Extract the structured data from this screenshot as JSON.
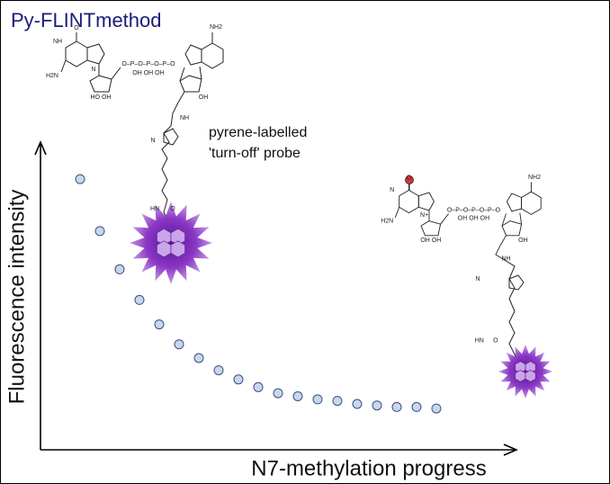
{
  "chart_data": {
    "type": "scatter",
    "title": "Py-FLINTmethod",
    "xlabel": "N7-methylation progress",
    "ylabel": "Fluorescence intensity",
    "annotation": [
      "pyrene-labelled",
      "'turn-off' probe"
    ],
    "x": [
      1,
      2,
      3,
      4,
      5,
      6,
      7,
      8,
      9,
      10,
      11,
      12,
      13,
      14,
      15,
      16,
      17,
      18,
      19
    ],
    "y": [
      88.5,
      71.5,
      59,
      49,
      41,
      34.5,
      30,
      26,
      23,
      20.5,
      18.5,
      17.5,
      16.5,
      16,
      15,
      14.5,
      14,
      14,
      13.5
    ],
    "color": "#c8d6ef",
    "xlim": [
      -1,
      23
    ],
    "ylim": [
      0,
      100
    ]
  },
  "molecule_labels": {
    "probe": [
      "O",
      "NH",
      "H2N",
      "N",
      "O–P–O–P–O–P–O",
      "OH   OH   OH",
      "NH2",
      "HO  OH",
      "OH",
      "NH",
      "N",
      "HN",
      "O"
    ],
    "methylated": [
      "O",
      "N",
      "H2N",
      "N+",
      "O–P–O–P–O–P–O",
      "OH   OH   OH",
      "NH2",
      "OH  OH",
      "OH",
      "NH",
      "N",
      "HN",
      "O"
    ]
  }
}
